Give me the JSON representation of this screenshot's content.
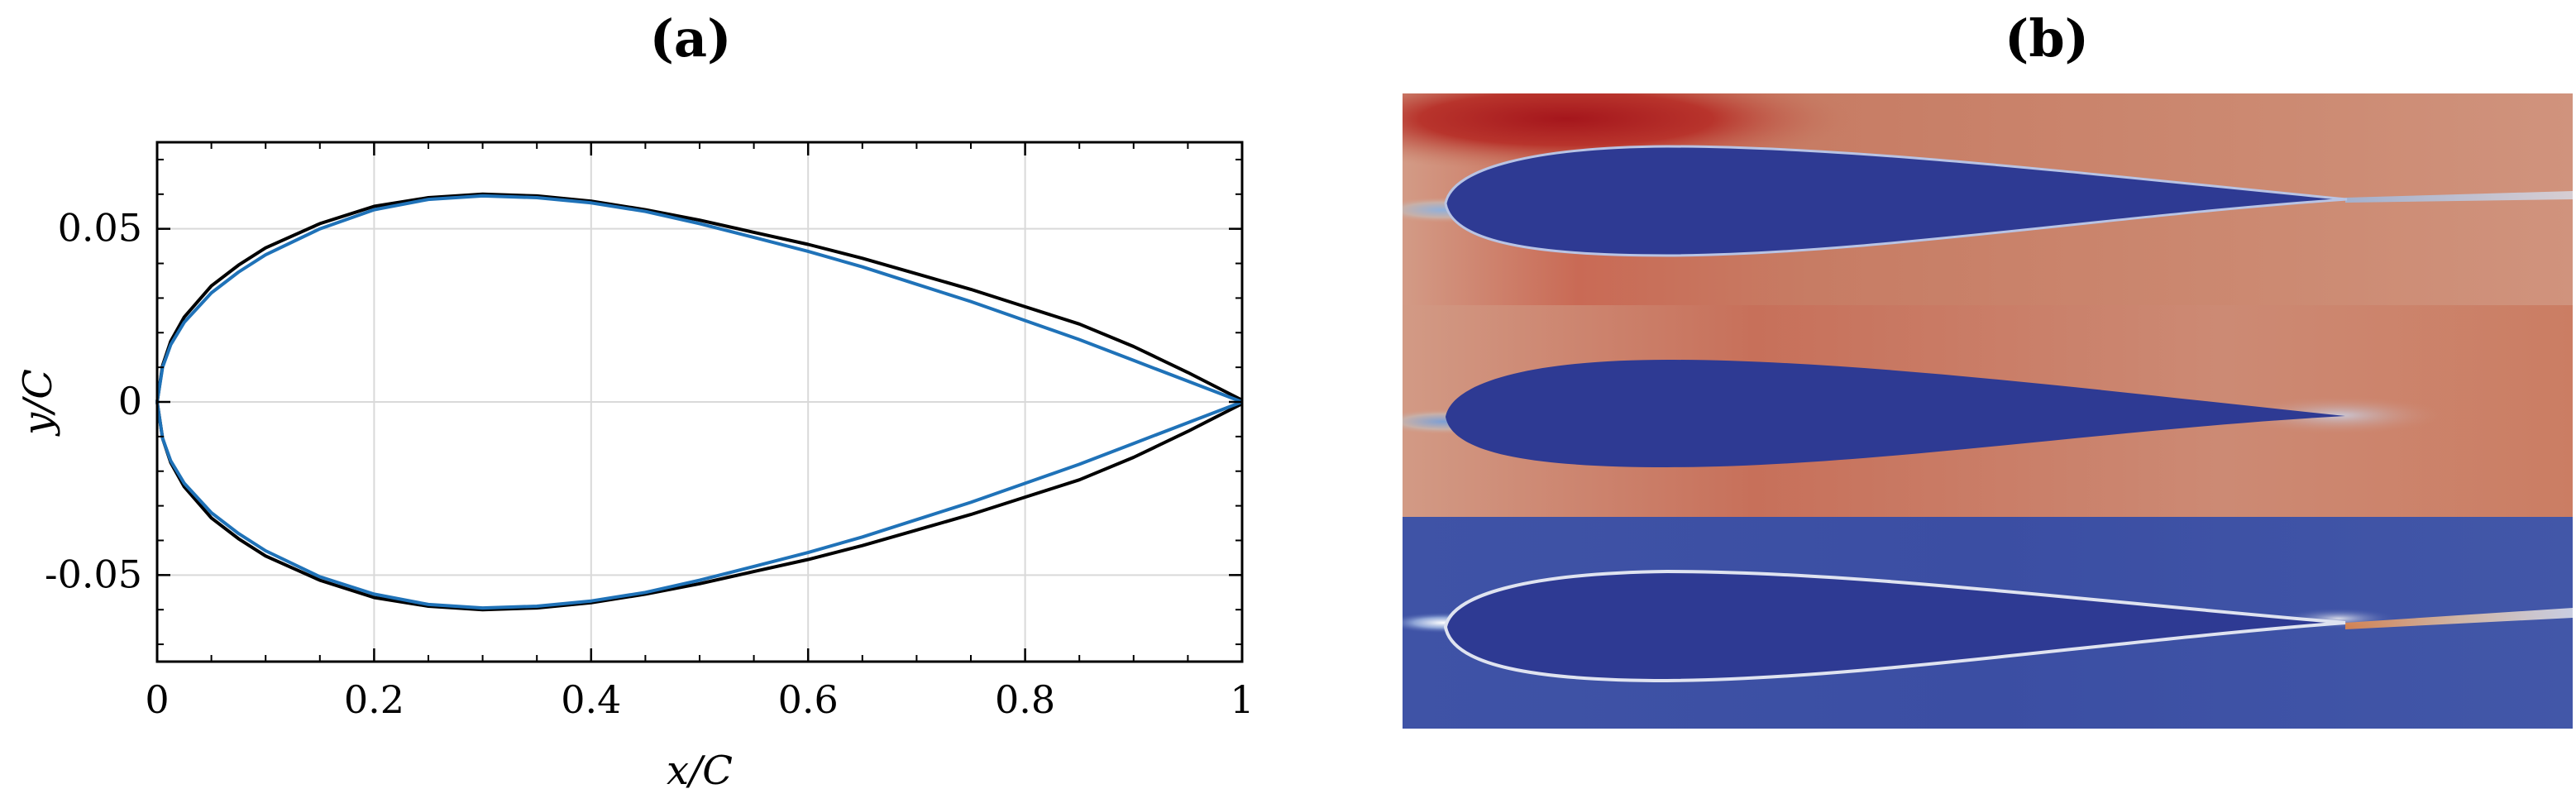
{
  "panels": {
    "a": "(a)",
    "b": "(b)"
  },
  "chart_data": {
    "type": "line",
    "xlabel": "x/C",
    "ylabel": "y/C",
    "xlim": [
      0,
      1
    ],
    "ylim": [
      -0.075,
      0.075
    ],
    "x_ticks": [
      0,
      0.2,
      0.4,
      0.6,
      0.8,
      1
    ],
    "x_tick_labels": [
      "0",
      "0.2",
      "0.4",
      "0.6",
      "0.8",
      "1"
    ],
    "y_ticks": [
      -0.05,
      0,
      0.05
    ],
    "y_tick_labels": [
      "-0.05",
      "0",
      "0.05"
    ],
    "grid": true,
    "series": [
      {
        "color": "#000000",
        "upper": [
          [
            0,
            0
          ],
          [
            0.005,
            0.0105
          ],
          [
            0.0125,
            0.0175
          ],
          [
            0.025,
            0.0245
          ],
          [
            0.05,
            0.0335
          ],
          [
            0.075,
            0.0395
          ],
          [
            0.1,
            0.0445
          ],
          [
            0.15,
            0.0515
          ],
          [
            0.2,
            0.0565
          ],
          [
            0.25,
            0.059
          ],
          [
            0.3,
            0.06
          ],
          [
            0.35,
            0.0595
          ],
          [
            0.4,
            0.058
          ],
          [
            0.45,
            0.0555
          ],
          [
            0.5,
            0.0525
          ],
          [
            0.55,
            0.049
          ],
          [
            0.6,
            0.0455
          ],
          [
            0.65,
            0.0415
          ],
          [
            0.7,
            0.037
          ],
          [
            0.75,
            0.0325
          ],
          [
            0.8,
            0.0275
          ],
          [
            0.85,
            0.0225
          ],
          [
            0.9,
            0.016
          ],
          [
            0.95,
            0.0085
          ],
          [
            1,
            0.0005
          ]
        ],
        "lower": [
          [
            0,
            0
          ],
          [
            0.005,
            -0.0105
          ],
          [
            0.0125,
            -0.0175
          ],
          [
            0.025,
            -0.0245
          ],
          [
            0.05,
            -0.0335
          ],
          [
            0.075,
            -0.0395
          ],
          [
            0.1,
            -0.0445
          ],
          [
            0.15,
            -0.0515
          ],
          [
            0.2,
            -0.0565
          ],
          [
            0.25,
            -0.059
          ],
          [
            0.3,
            -0.06
          ],
          [
            0.35,
            -0.0595
          ],
          [
            0.4,
            -0.058
          ],
          [
            0.45,
            -0.0555
          ],
          [
            0.5,
            -0.0525
          ],
          [
            0.55,
            -0.049
          ],
          [
            0.6,
            -0.0455
          ],
          [
            0.65,
            -0.0415
          ],
          [
            0.7,
            -0.037
          ],
          [
            0.75,
            -0.0325
          ],
          [
            0.8,
            -0.0275
          ],
          [
            0.85,
            -0.0225
          ],
          [
            0.9,
            -0.016
          ],
          [
            0.95,
            -0.0085
          ],
          [
            1,
            -0.0005
          ]
        ]
      },
      {
        "color": "#1f72b8",
        "upper": [
          [
            0,
            0
          ],
          [
            0.005,
            0.01
          ],
          [
            0.0125,
            0.0165
          ],
          [
            0.025,
            0.023
          ],
          [
            0.05,
            0.0315
          ],
          [
            0.075,
            0.0375
          ],
          [
            0.1,
            0.0425
          ],
          [
            0.15,
            0.05
          ],
          [
            0.2,
            0.0555
          ],
          [
            0.25,
            0.0585
          ],
          [
            0.3,
            0.0595
          ],
          [
            0.35,
            0.059
          ],
          [
            0.4,
            0.0575
          ],
          [
            0.45,
            0.055
          ],
          [
            0.5,
            0.0515
          ],
          [
            0.55,
            0.0475
          ],
          [
            0.6,
            0.0435
          ],
          [
            0.65,
            0.039
          ],
          [
            0.7,
            0.034
          ],
          [
            0.75,
            0.029
          ],
          [
            0.8,
            0.0235
          ],
          [
            0.85,
            0.018
          ],
          [
            0.9,
            0.012
          ],
          [
            0.95,
            0.006
          ],
          [
            1,
            0
          ]
        ],
        "lower": [
          [
            0,
            0
          ],
          [
            0.005,
            -0.0105
          ],
          [
            0.0125,
            -0.017
          ],
          [
            0.025,
            -0.0235
          ],
          [
            0.05,
            -0.032
          ],
          [
            0.075,
            -0.038
          ],
          [
            0.1,
            -0.043
          ],
          [
            0.15,
            -0.0505
          ],
          [
            0.2,
            -0.0555
          ],
          [
            0.25,
            -0.0585
          ],
          [
            0.3,
            -0.0595
          ],
          [
            0.35,
            -0.059
          ],
          [
            0.4,
            -0.0575
          ],
          [
            0.45,
            -0.055
          ],
          [
            0.5,
            -0.0515
          ],
          [
            0.55,
            -0.0475
          ],
          [
            0.6,
            -0.0435
          ],
          [
            0.65,
            -0.039
          ],
          [
            0.7,
            -0.034
          ],
          [
            0.75,
            -0.029
          ],
          [
            0.8,
            -0.0235
          ],
          [
            0.85,
            -0.018
          ],
          [
            0.9,
            -0.012
          ],
          [
            0.95,
            -0.006
          ],
          [
            1,
            0
          ]
        ]
      }
    ]
  },
  "field_colors": {
    "body": "#2e3a93",
    "band_top_base": "#cf8a72",
    "band_mid_base": "#cd8066",
    "band_bottom_base": "#3f53a6",
    "high": "#a5161c",
    "low_light": "#9db7dc",
    "wake_orange": "#e0864a"
  }
}
